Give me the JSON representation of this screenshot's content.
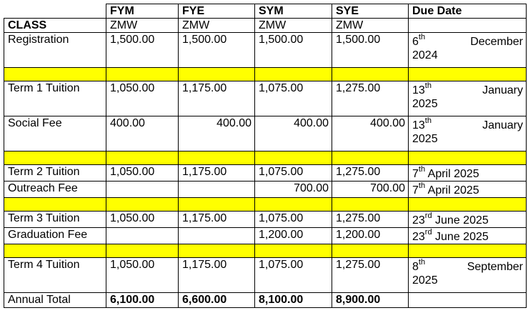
{
  "headers": [
    "",
    "FYM",
    "FYE",
    "SYM",
    "SYE",
    "Due Date"
  ],
  "currency_row": {
    "label": "CLASS",
    "values": [
      "ZMW",
      "ZMW",
      "ZMW",
      "ZMW"
    ]
  },
  "rows": {
    "registration": {
      "label": "Registration",
      "values": [
        "1,500.00",
        "1,500.00",
        "1,500.00",
        "1,500.00"
      ],
      "due": {
        "day": "6",
        "suffix": "th",
        "month": "December",
        "year": "2024"
      }
    },
    "term1": {
      "label": "Term 1 Tuition",
      "values": [
        "1,050.00",
        "1,175.00",
        "1,075.00",
        "1,275.00"
      ],
      "due": {
        "day": "13",
        "suffix": "th",
        "month": "January",
        "year": "2025"
      }
    },
    "social": {
      "label": "Social Fee",
      "values": [
        "400.00",
        "400.00",
        "400.00",
        "400.00"
      ],
      "due": {
        "day": "13",
        "suffix": "th",
        "month": "January",
        "year": "2025"
      }
    },
    "term2": {
      "label": "Term 2 Tuition",
      "values": [
        "1,050.00",
        "1,175.00",
        "1,075.00",
        "1,275.00"
      ],
      "due": {
        "day": "7",
        "suffix": "th",
        "rest": "April 2025"
      }
    },
    "outreach": {
      "label": "Outreach Fee",
      "values": [
        "",
        "",
        "700.00",
        "700.00"
      ],
      "due": {
        "day": "7",
        "suffix": "th",
        "rest": "April 2025"
      }
    },
    "term3": {
      "label": "Term 3 Tuition",
      "values": [
        "1,050.00",
        "1,175.00",
        "1,075.00",
        "1,275.00"
      ],
      "due": {
        "day": "23",
        "suffix": "rd",
        "rest": "June 2025"
      }
    },
    "graduation": {
      "label": "Graduation Fee",
      "values": [
        "",
        "",
        "1,200.00",
        "1,200.00"
      ],
      "due": {
        "day": "23",
        "suffix": "rd",
        "rest": "June 2025"
      }
    },
    "term4": {
      "label": "Term 4 Tuition",
      "values": [
        "1,050.00",
        "1,175.00",
        "1,075.00",
        "1,275.00"
      ],
      "due": {
        "day": "8",
        "suffix": "th",
        "month": "September",
        "year": "2025"
      }
    },
    "total": {
      "label": "Annual Total",
      "values": [
        "6,100.00",
        "6,600.00",
        "8,100.00",
        "8,900.00"
      ]
    }
  },
  "colors": {
    "separator": "#ffff00",
    "border": "#000000"
  }
}
